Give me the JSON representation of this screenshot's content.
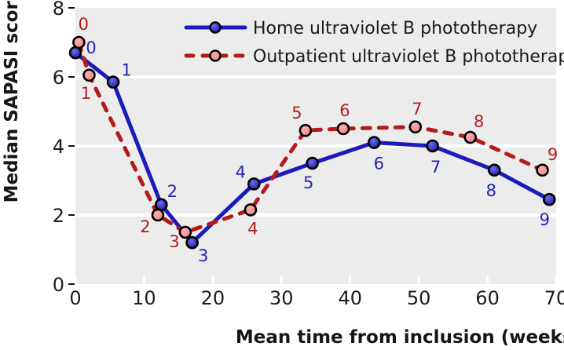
{
  "figure": {
    "background": "#ffffff",
    "plot_background": "#ececec",
    "grid_color": "#ffffff",
    "axis_text_color": "#1c1c1c"
  },
  "chart_data": {
    "type": "line",
    "title": "",
    "xlabel": "Mean time from inclusion (weeks)",
    "ylabel": "Median SAPASI score",
    "xlim": [
      0,
      70
    ],
    "ylim": [
      0,
      8
    ],
    "x_ticks": [
      0,
      10,
      20,
      30,
      40,
      50,
      60,
      70
    ],
    "y_ticks": [
      0,
      2,
      4,
      6,
      8
    ],
    "grid_y": [
      2,
      4,
      6
    ],
    "grid": "horizontal-white",
    "legend_position": "top-inside",
    "series": [
      {
        "id": "home",
        "name": "Home ultraviolet B phototherapy",
        "style": "solid",
        "line_color": "#1b1bbd",
        "marker_fill_inner": "#6b6bff",
        "marker_fill_outer": "#15157e",
        "marker_outline": "#000000",
        "label_color": "#2424b4",
        "points": [
          {
            "label": "0",
            "x": 0,
            "y": 6.7,
            "dx": 20,
            "dy": -6
          },
          {
            "label": "1",
            "x": 5.5,
            "y": 5.85,
            "dx": 17,
            "dy": -15
          },
          {
            "label": "2",
            "x": 12.5,
            "y": 2.3,
            "dx": 14,
            "dy": -17
          },
          {
            "label": "3",
            "x": 17,
            "y": 1.2,
            "dx": 14,
            "dy": 17
          },
          {
            "label": "4",
            "x": 26,
            "y": 2.9,
            "dx": -17,
            "dy": -15
          },
          {
            "label": "5",
            "x": 34.5,
            "y": 3.5,
            "dx": -5,
            "dy": 25
          },
          {
            "label": "6",
            "x": 43.5,
            "y": 4.1,
            "dx": 6,
            "dy": 27
          },
          {
            "label": "7",
            "x": 52,
            "y": 4.0,
            "dx": 4,
            "dy": 27
          },
          {
            "label": "8",
            "x": 61,
            "y": 3.3,
            "dx": -4,
            "dy": 26
          },
          {
            "label": "9",
            "x": 69,
            "y": 2.45,
            "dx": -6,
            "dy": 26
          }
        ]
      },
      {
        "id": "outpatient",
        "name": "Outpatient ultraviolet B phototherapy",
        "style": "dashed",
        "line_color": "#b31b1b",
        "marker_fill_inner": "#ffadad",
        "marker_fill_outer": "#e88585",
        "marker_outline": "#000000",
        "label_color": "#b32020",
        "points": [
          {
            "label": "0",
            "x": 0.5,
            "y": 7.0,
            "dx": 6,
            "dy": -23
          },
          {
            "label": "1",
            "x": 2,
            "y": 6.05,
            "dx": -4,
            "dy": 23
          },
          {
            "label": "2",
            "x": 12,
            "y": 2.0,
            "dx": -16,
            "dy": 15
          },
          {
            "label": "3",
            "x": 16,
            "y": 1.5,
            "dx": -14,
            "dy": 12
          },
          {
            "label": "4",
            "x": 25.5,
            "y": 2.15,
            "dx": 3,
            "dy": 24
          },
          {
            "label": "5",
            "x": 33.5,
            "y": 4.45,
            "dx": -11,
            "dy": -22
          },
          {
            "label": "6",
            "x": 39,
            "y": 4.5,
            "dx": 2,
            "dy": -23
          },
          {
            "label": "7",
            "x": 49.5,
            "y": 4.55,
            "dx": 2,
            "dy": -23
          },
          {
            "label": "8",
            "x": 57.5,
            "y": 4.25,
            "dx": 11,
            "dy": -20
          },
          {
            "label": "9",
            "x": 68,
            "y": 3.3,
            "dx": 13,
            "dy": -20
          }
        ]
      }
    ]
  }
}
